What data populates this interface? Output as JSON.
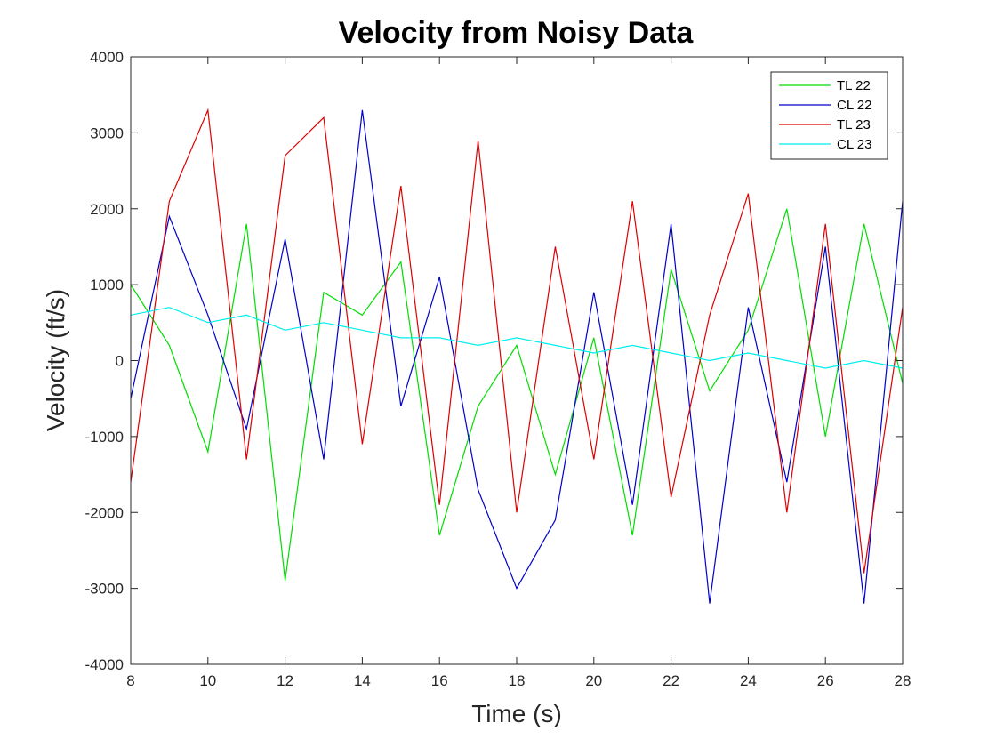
{
  "chart_data": {
    "type": "line",
    "title": "Velocity from Noisy Data",
    "xlabel": "Time (s)",
    "ylabel": "Velocity (ft/s)",
    "xlim": [
      8,
      28
    ],
    "ylim": [
      -4000,
      4000
    ],
    "xticks": [
      8,
      10,
      12,
      14,
      16,
      18,
      20,
      22,
      24,
      26,
      28
    ],
    "xtick_labels": [
      "8",
      "10",
      "12",
      "14",
      "16",
      "18",
      "20",
      "22",
      "24",
      "26",
      "28"
    ],
    "yticks": [
      -4000,
      -3000,
      -2000,
      -1000,
      0,
      1000,
      2000,
      3000,
      4000
    ],
    "ytick_labels": [
      "-4000",
      "-3000",
      "-2000",
      "-1000",
      "0",
      "1000",
      "2000",
      "3000",
      "4000"
    ],
    "grid": false,
    "legend_position": "top-right",
    "series": [
      {
        "name": "TL 22",
        "color": "#00dd00",
        "x": [
          8,
          9,
          10,
          11,
          12,
          13,
          14,
          15,
          16,
          17,
          18,
          19,
          20,
          21,
          22,
          23,
          24,
          25,
          26,
          27,
          28
        ],
        "y": [
          1000,
          200,
          -1200,
          1800,
          -2900,
          900,
          600,
          1300,
          -2300,
          -600,
          200,
          -1500,
          300,
          -2300,
          1200,
          -400,
          400,
          2000,
          -1000,
          1800,
          -300
        ]
      },
      {
        "name": "CL 22",
        "color": "#0000cc",
        "x": [
          8,
          9,
          10,
          11,
          12,
          13,
          14,
          15,
          16,
          17,
          18,
          19,
          20,
          21,
          22,
          23,
          24,
          25,
          26,
          27,
          28
        ],
        "y": [
          -500,
          1900,
          600,
          -900,
          1600,
          -1300,
          3300,
          -600,
          1100,
          -1700,
          -3000,
          -2100,
          900,
          -1900,
          1800,
          -3200,
          700,
          -1600,
          1500,
          -3200,
          2100
        ]
      },
      {
        "name": "TL 23",
        "color": "#dd0000",
        "x": [
          8,
          9,
          10,
          11,
          12,
          13,
          14,
          15,
          16,
          17,
          18,
          19,
          20,
          21,
          22,
          23,
          24,
          25,
          26,
          27,
          28
        ],
        "y": [
          -1600,
          2100,
          3300,
          -1300,
          2700,
          3200,
          -1100,
          2300,
          -1900,
          2900,
          -2000,
          1500,
          -1300,
          2100,
          -1800,
          600,
          2200,
          -2000,
          1800,
          -2800,
          700
        ]
      },
      {
        "name": "CL 23",
        "color": "#00eeee",
        "x": [
          8,
          9,
          10,
          11,
          12,
          13,
          14,
          15,
          16,
          17,
          18,
          19,
          20,
          21,
          22,
          23,
          24,
          25,
          26,
          27,
          28
        ],
        "y": [
          600,
          700,
          500,
          600,
          400,
          500,
          400,
          300,
          300,
          200,
          300,
          200,
          100,
          200,
          100,
          0,
          100,
          0,
          -100,
          0,
          -100
        ]
      }
    ]
  }
}
